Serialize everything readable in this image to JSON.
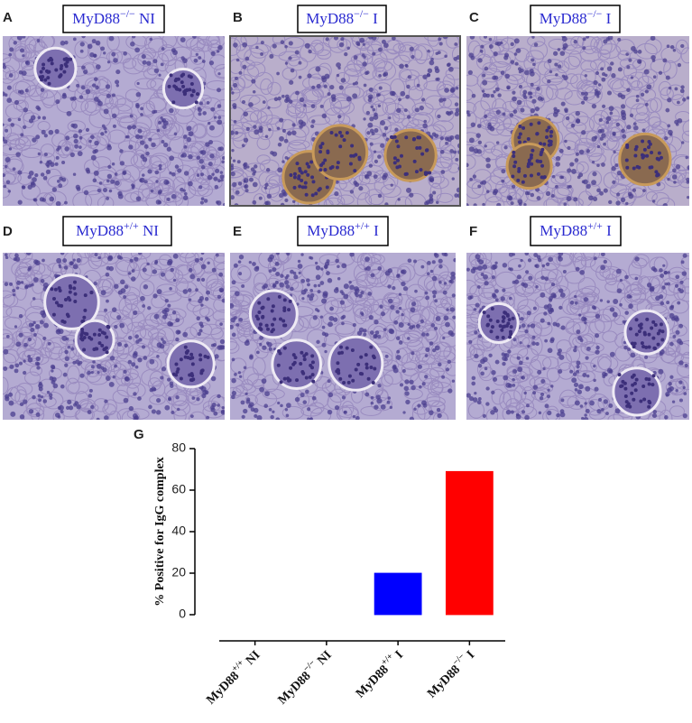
{
  "panels": [
    {
      "letter": "A",
      "label": {
        "base": "MyD88",
        "sup": "−/−",
        "suffix": " NI"
      }
    },
    {
      "letter": "B",
      "label": {
        "base": "MyD88",
        "sup": "−/−",
        "suffix": " I"
      }
    },
    {
      "letter": "C",
      "label": {
        "base": "MyD88",
        "sup": "−/−",
        "suffix": " I"
      }
    },
    {
      "letter": "D",
      "label": {
        "base": "MyD88",
        "sup": "+/+",
        "suffix": " NI"
      }
    },
    {
      "letter": "E",
      "label": {
        "base": "MyD88",
        "sup": "+/+",
        "suffix": " I"
      }
    },
    {
      "letter": "F",
      "label": {
        "base": "MyD88",
        "sup": "+/+",
        "suffix": " I"
      }
    }
  ],
  "chart_data": {
    "type": "bar",
    "panel_letter": "G",
    "y_label": "% Positive for IgG complex",
    "categories": [
      {
        "base": "MyD88",
        "sup": "+/+",
        "suffix": " NI"
      },
      {
        "base": "MyD88",
        "sup": "−/−",
        "suffix": " NI"
      },
      {
        "base": "MyD88",
        "sup": "+/+",
        "suffix": " I"
      },
      {
        "base": "MyD88",
        "sup": "−/−",
        "suffix": " I"
      }
    ],
    "values": [
      0,
      0,
      20,
      69
    ],
    "colors": [
      "#2aa88a",
      "#ff66aa",
      "#0000ff",
      "#ff0000"
    ],
    "ylim": [
      0,
      80
    ],
    "yticks": [
      0,
      20,
      40,
      60,
      80
    ]
  }
}
